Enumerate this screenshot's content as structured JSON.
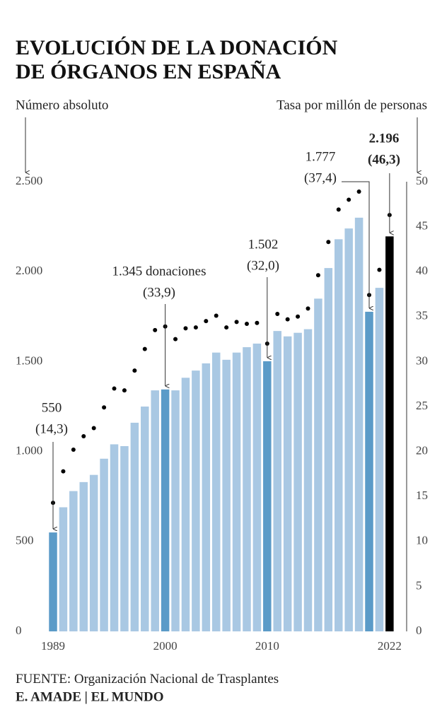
{
  "chart_data": {
    "type": "bar_dot",
    "title": [
      "EVOLUCIÓN DE LA DONACIÓN",
      "DE ÓRGANOS EN ESPAÑA"
    ],
    "y_label": "Número absoluto",
    "y2_label": "Tasa por millón de personas",
    "categories": [
      "1989",
      null,
      null,
      null,
      null,
      null,
      null,
      null,
      null,
      null,
      null,
      "2000",
      null,
      null,
      null,
      null,
      null,
      null,
      null,
      null,
      null,
      "2010",
      null,
      null,
      null,
      null,
      null,
      null,
      null,
      null,
      null,
      null,
      null,
      "2022"
    ],
    "series": [
      {
        "name": "Número absoluto",
        "type": "bar",
        "colors": [
          "#5b9bc8",
          "#a9c8e3",
          "#a9c8e3",
          "#a9c8e3",
          "#a9c8e3",
          "#a9c8e3",
          "#a9c8e3",
          "#a9c8e3",
          "#a9c8e3",
          "#a9c8e3",
          "#a9c8e3",
          "#5b9bc8",
          "#a9c8e3",
          "#a9c8e3",
          "#a9c8e3",
          "#a9c8e3",
          "#a9c8e3",
          "#a9c8e3",
          "#a9c8e3",
          "#a9c8e3",
          "#a9c8e3",
          "#5b9bc8",
          "#a9c8e3",
          "#a9c8e3",
          "#a9c8e3",
          "#a9c8e3",
          "#a9c8e3",
          "#a9c8e3",
          "#a9c8e3",
          "#a9c8e3",
          "#a9c8e3",
          "#5b9bc8",
          "#a9c8e3",
          "#000000"
        ],
        "values": [
          550,
          690,
          780,
          830,
          870,
          960,
          1040,
          1030,
          1160,
          1250,
          1340,
          1345,
          1340,
          1410,
          1450,
          1490,
          1550,
          1510,
          1550,
          1580,
          1600,
          1502,
          1670,
          1640,
          1660,
          1680,
          1850,
          2020,
          2180,
          2240,
          2300,
          1777,
          1910,
          2196
        ],
        "value_labels": [
          "550",
          null,
          null,
          null,
          null,
          null,
          null,
          null,
          null,
          null,
          null,
          "1.345 donaciones",
          null,
          null,
          null,
          null,
          null,
          null,
          null,
          null,
          null,
          "1.502",
          null,
          null,
          null,
          null,
          null,
          null,
          null,
          null,
          null,
          "1.777",
          null,
          "2.196"
        ]
      },
      {
        "name": "Tasa por millón de personas",
        "type": "dot",
        "axis": "y2",
        "color": "#000000",
        "values": [
          14.3,
          17.8,
          20.2,
          21.7,
          22.6,
          24.9,
          27.0,
          26.8,
          29.0,
          31.4,
          33.5,
          33.9,
          32.5,
          33.7,
          33.8,
          34.5,
          35.1,
          33.8,
          34.4,
          34.2,
          34.3,
          32.0,
          35.3,
          34.7,
          35.0,
          35.9,
          39.6,
          43.3,
          46.9,
          48.0,
          48.9,
          37.4,
          40.2,
          46.3
        ],
        "value_labels": [
          "(14,3)",
          null,
          null,
          null,
          null,
          null,
          null,
          null,
          null,
          null,
          null,
          "(33,9)",
          null,
          null,
          null,
          null,
          null,
          null,
          null,
          null,
          null,
          "(32,0)",
          null,
          null,
          null,
          null,
          null,
          null,
          null,
          null,
          null,
          "(37,4)",
          null,
          "(46,3)"
        ]
      }
    ],
    "ylim": [
      0,
      2500
    ],
    "yticks": [
      0,
      500,
      {
        "value": 1000,
        "label": "1.000"
      },
      {
        "value": 1500,
        "label": "1.500"
      },
      {
        "value": 2000,
        "label": "2.000"
      },
      {
        "value": 2500,
        "label": "2.500"
      }
    ],
    "y2lim": [
      0,
      50
    ],
    "y2ticks": [
      0,
      5,
      10,
      15,
      20,
      25,
      30,
      35,
      40,
      45,
      50
    ],
    "source_label": "FUENTE:",
    "source": "Organización Nacional de Trasplantes",
    "credit": "E. AMADE | EL MUNDO"
  }
}
